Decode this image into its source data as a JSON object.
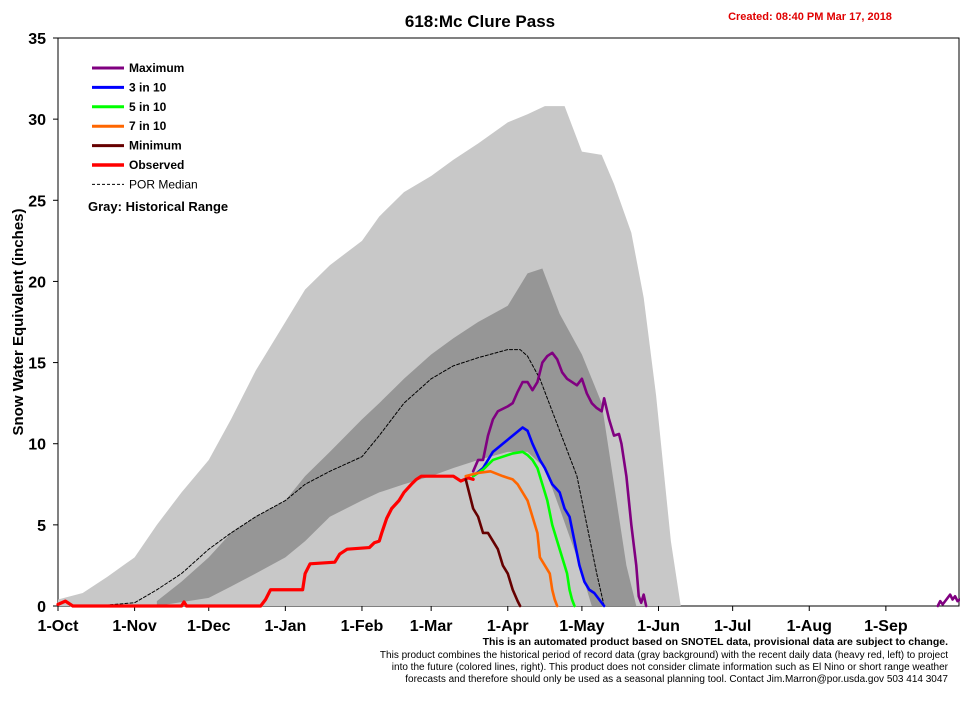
{
  "chart_data": {
    "type": "area",
    "title": "618:Mc Clure Pass",
    "created_label": "Created: 08:40 PM Mar 17, 2018",
    "ylabel": "Snow Water Equivalent (inches)",
    "xlabel": "",
    "ylim": [
      0,
      35
    ],
    "yticks": [
      0,
      5,
      10,
      15,
      20,
      25,
      30,
      35
    ],
    "x_unit": "days since 1-Oct",
    "xlim": [
      0,
      365
    ],
    "xticks": [
      {
        "label": "1-Oct",
        "x": 0
      },
      {
        "label": "1-Nov",
        "x": 31
      },
      {
        "label": "1-Dec",
        "x": 61
      },
      {
        "label": "1-Jan",
        "x": 92
      },
      {
        "label": "1-Feb",
        "x": 123
      },
      {
        "label": "1-Mar",
        "x": 151
      },
      {
        "label": "1-Apr",
        "x": 182
      },
      {
        "label": "1-May",
        "x": 212
      },
      {
        "label": "1-Jun",
        "x": 243
      },
      {
        "label": "1-Jul",
        "x": 273
      },
      {
        "label": "1-Aug",
        "x": 304
      },
      {
        "label": "1-Sep",
        "x": 335
      }
    ],
    "colors": {
      "historical_range": "#c8c8c8",
      "inner_range": "#969696",
      "maximum": "#800080",
      "p3in10": "#0000ff",
      "p5in10": "#00ff00",
      "p7in10": "#ff6600",
      "minimum": "#660000",
      "observed": "#ff0000",
      "median": "#000000"
    },
    "legend": {
      "placement": "top-left",
      "items": [
        {
          "label": "Maximum",
          "key": "maximum"
        },
        {
          "label": "3 in 10",
          "key": "p3in10"
        },
        {
          "label": "5 in 10",
          "key": "p5in10"
        },
        {
          "label": "7 in 10",
          "key": "p7in10"
        },
        {
          "label": "Minimum",
          "key": "minimum"
        },
        {
          "label": "Observed",
          "key": "observed"
        },
        {
          "label": "POR Median",
          "key": "median"
        }
      ],
      "note": "Gray: Historical Range"
    },
    "historical_range": {
      "upper": [
        [
          0,
          0.4
        ],
        [
          10,
          0.8
        ],
        [
          20,
          1.8
        ],
        [
          31,
          3
        ],
        [
          40,
          5
        ],
        [
          50,
          7
        ],
        [
          61,
          9
        ],
        [
          70,
          11.5
        ],
        [
          80,
          14.5
        ],
        [
          92,
          17.5
        ],
        [
          100,
          19.5
        ],
        [
          110,
          21
        ],
        [
          123,
          22.5
        ],
        [
          130,
          24
        ],
        [
          140,
          25.5
        ],
        [
          151,
          26.5
        ],
        [
          160,
          27.5
        ],
        [
          170,
          28.5
        ],
        [
          182,
          29.8
        ],
        [
          190,
          30.3
        ],
        [
          197,
          30.8
        ],
        [
          205,
          30.8
        ],
        [
          212,
          28
        ],
        [
          220,
          27.8
        ],
        [
          225,
          26
        ],
        [
          232,
          23
        ],
        [
          237,
          19
        ],
        [
          242,
          13
        ],
        [
          248,
          4
        ],
        [
          252,
          0
        ]
      ],
      "lower": [
        [
          0,
          0
        ],
        [
          182,
          0
        ],
        [
          252,
          0
        ]
      ]
    },
    "inner_range": {
      "upper": [
        [
          40,
          0.3
        ],
        [
          50,
          1.5
        ],
        [
          61,
          3
        ],
        [
          70,
          4.5
        ],
        [
          80,
          5.5
        ],
        [
          92,
          6.5
        ],
        [
          100,
          8
        ],
        [
          110,
          9.5
        ],
        [
          123,
          11.5
        ],
        [
          130,
          12.5
        ],
        [
          140,
          14
        ],
        [
          151,
          15.5
        ],
        [
          160,
          16.5
        ],
        [
          170,
          17.5
        ],
        [
          182,
          18.5
        ],
        [
          190,
          20.5
        ],
        [
          196,
          20.8
        ],
        [
          203,
          18
        ],
        [
          212,
          15.5
        ],
        [
          220,
          12.5
        ],
        [
          226,
          6.5
        ],
        [
          230,
          2.5
        ],
        [
          234,
          0
        ]
      ],
      "lower": [
        [
          40,
          0
        ],
        [
          61,
          0.5
        ],
        [
          70,
          1.2
        ],
        [
          80,
          2
        ],
        [
          92,
          3
        ],
        [
          100,
          4
        ],
        [
          110,
          5.5
        ],
        [
          123,
          6.5
        ],
        [
          130,
          7
        ],
        [
          140,
          7.5
        ],
        [
          151,
          8
        ],
        [
          160,
          8.5
        ],
        [
          170,
          9
        ],
        [
          182,
          9.5
        ],
        [
          190,
          9.5
        ],
        [
          197,
          8.5
        ],
        [
          203,
          6
        ],
        [
          210,
          3
        ],
        [
          214,
          1
        ],
        [
          216,
          0
        ]
      ]
    },
    "series": [
      {
        "name": "POR Median",
        "key": "median",
        "dashed": true,
        "points": [
          [
            15,
            0
          ],
          [
            31,
            0.2
          ],
          [
            40,
            1
          ],
          [
            50,
            2
          ],
          [
            61,
            3.5
          ],
          [
            70,
            4.5
          ],
          [
            80,
            5.5
          ],
          [
            92,
            6.5
          ],
          [
            100,
            7.5
          ],
          [
            110,
            8.3
          ],
          [
            123,
            9.2
          ],
          [
            130,
            10.5
          ],
          [
            140,
            12.5
          ],
          [
            151,
            14
          ],
          [
            160,
            14.8
          ],
          [
            170,
            15.3
          ],
          [
            182,
            15.8
          ],
          [
            187,
            15.8
          ],
          [
            190,
            15.4
          ],
          [
            195,
            14
          ],
          [
            200,
            12
          ],
          [
            205,
            10
          ],
          [
            210,
            8
          ],
          [
            214,
            5
          ],
          [
            218,
            2
          ],
          [
            221,
            0
          ]
        ]
      },
      {
        "name": "Observed",
        "key": "observed",
        "width": 3.2,
        "points": [
          [
            0,
            0.1
          ],
          [
            3,
            0.3
          ],
          [
            6,
            0
          ],
          [
            50,
            0
          ],
          [
            51,
            0.25
          ],
          [
            52,
            0
          ],
          [
            82,
            0
          ],
          [
            84,
            0.4
          ],
          [
            86,
            1
          ],
          [
            99,
            1
          ],
          [
            100,
            2
          ],
          [
            102,
            2.6
          ],
          [
            112,
            2.7
          ],
          [
            114,
            3.2
          ],
          [
            117,
            3.5
          ],
          [
            126,
            3.6
          ],
          [
            128,
            3.9
          ],
          [
            130,
            4
          ],
          [
            131,
            4.5
          ],
          [
            133,
            5.4
          ],
          [
            135,
            6
          ],
          [
            138,
            6.5
          ],
          [
            140,
            7
          ],
          [
            143,
            7.5
          ],
          [
            145,
            7.8
          ],
          [
            147,
            8
          ],
          [
            160,
            8
          ],
          [
            163,
            7.7
          ],
          [
            166,
            7.9
          ],
          [
            168,
            7.8
          ]
        ]
      },
      {
        "name": "Maximum",
        "key": "maximum",
        "points": [
          [
            168,
            8.3
          ],
          [
            170,
            9
          ],
          [
            172,
            9
          ],
          [
            174,
            10.5
          ],
          [
            176,
            11.5
          ],
          [
            178,
            12
          ],
          [
            182,
            12.3
          ],
          [
            184,
            12.5
          ],
          [
            186,
            13.2
          ],
          [
            188,
            13.8
          ],
          [
            190,
            13.8
          ],
          [
            192,
            13.3
          ],
          [
            194,
            13.8
          ],
          [
            196,
            15
          ],
          [
            198,
            15.4
          ],
          [
            200,
            15.6
          ],
          [
            202,
            15.2
          ],
          [
            204,
            14.4
          ],
          [
            206,
            14
          ],
          [
            210,
            13.6
          ],
          [
            212,
            14
          ],
          [
            214,
            13.1
          ],
          [
            216,
            12.5
          ],
          [
            218,
            12.2
          ],
          [
            220,
            12
          ],
          [
            221,
            12.8
          ],
          [
            223,
            11.5
          ],
          [
            225,
            10.5
          ],
          [
            227,
            10.6
          ],
          [
            228,
            10
          ],
          [
            230,
            8
          ],
          [
            232,
            5
          ],
          [
            234,
            2.5
          ],
          [
            235,
            0.6
          ],
          [
            236,
            0.2
          ],
          [
            237,
            0.7
          ],
          [
            238,
            0
          ]
        ]
      },
      {
        "name": "3 in 10",
        "key": "p3in10",
        "points": [
          [
            168,
            8
          ],
          [
            172,
            8.5
          ],
          [
            176,
            9.5
          ],
          [
            180,
            10
          ],
          [
            184,
            10.5
          ],
          [
            188,
            11
          ],
          [
            190,
            10.8
          ],
          [
            192,
            10
          ],
          [
            195,
            9
          ],
          [
            197,
            8.5
          ],
          [
            200,
            7.5
          ],
          [
            203,
            7
          ],
          [
            205,
            6
          ],
          [
            207,
            5.5
          ],
          [
            209,
            4
          ],
          [
            211,
            2.5
          ],
          [
            213,
            1.5
          ],
          [
            215,
            1
          ],
          [
            217,
            0.8
          ],
          [
            219,
            0.4
          ],
          [
            221,
            0
          ]
        ]
      },
      {
        "name": "5 in 10",
        "key": "p5in10",
        "points": [
          [
            168,
            8
          ],
          [
            172,
            8.4
          ],
          [
            176,
            9
          ],
          [
            180,
            9.2
          ],
          [
            184,
            9.4
          ],
          [
            188,
            9.5
          ],
          [
            190,
            9.3
          ],
          [
            192,
            9
          ],
          [
            194,
            8.5
          ],
          [
            196,
            7.5
          ],
          [
            198,
            6.5
          ],
          [
            200,
            5
          ],
          [
            202,
            4
          ],
          [
            204,
            3
          ],
          [
            206,
            2
          ],
          [
            207,
            1
          ],
          [
            208,
            0.4
          ],
          [
            209,
            0
          ]
        ]
      },
      {
        "name": "7 in 10",
        "key": "p7in10",
        "points": [
          [
            165,
            8
          ],
          [
            170,
            8.2
          ],
          [
            175,
            8.3
          ],
          [
            180,
            8
          ],
          [
            184,
            7.8
          ],
          [
            186,
            7.5
          ],
          [
            188,
            7
          ],
          [
            190,
            6.5
          ],
          [
            192,
            5.5
          ],
          [
            194,
            4.5
          ],
          [
            195,
            3
          ],
          [
            197,
            2.5
          ],
          [
            199,
            2
          ],
          [
            200,
            1
          ],
          [
            201,
            0.4
          ],
          [
            202,
            0
          ]
        ]
      },
      {
        "name": "Minimum",
        "key": "minimum",
        "points": [
          [
            165,
            7.8
          ],
          [
            168,
            6
          ],
          [
            170,
            5.5
          ],
          [
            172,
            4.5
          ],
          [
            174,
            4.5
          ],
          [
            176,
            4
          ],
          [
            178,
            3.5
          ],
          [
            180,
            2.5
          ],
          [
            182,
            2
          ],
          [
            184,
            1
          ],
          [
            186,
            0.3
          ],
          [
            187,
            0
          ]
        ]
      },
      {
        "name": "Maximum (late)",
        "key": "maximum",
        "points": [
          [
            356,
            0
          ],
          [
            357,
            0.3
          ],
          [
            358,
            0.1
          ],
          [
            360,
            0.5
          ],
          [
            361,
            0.7
          ],
          [
            362,
            0.4
          ],
          [
            363,
            0.6
          ],
          [
            364,
            0.3
          ],
          [
            365,
            0.4
          ]
        ]
      }
    ]
  },
  "footer": {
    "line1": "This is an automated product based on SNOTEL data, provisional data are subject to change.",
    "line2": "This product combines the historical period of record data (gray background) with the recent daily data (heavy red, left) to project",
    "line3": "into the future (colored lines, right). This product does not consider climate information such as El Nino or short range weather",
    "line4": "forecasts and therefore should only be used as a seasonal planning tool. Contact Jim.Marron@por.usda.gov 503 414 3047"
  }
}
